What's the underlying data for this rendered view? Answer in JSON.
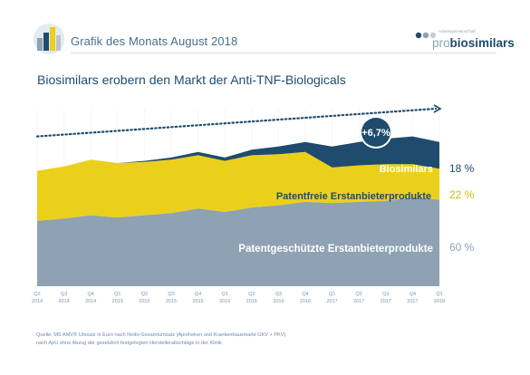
{
  "header": {
    "title": "Grafik des Monats August 2018",
    "logo_small": "Arbeitsgemeinschaft",
    "logo_pro": "pro",
    "logo_main": "biosimilars"
  },
  "chart_data": {
    "type": "area",
    "title": "Biosimilars erobern den Markt der Anti-TNF-Biologicals",
    "stacked": true,
    "categories": [
      "Q2 2014",
      "Q3 2014",
      "Q4 2014",
      "Q1 2015",
      "Q2 2015",
      "Q3 2015",
      "Q4 2015",
      "Q1 2016",
      "Q2 2016",
      "Q3 2016",
      "Q4 2016",
      "Q1 2017",
      "Q2 2017",
      "Q3 2017",
      "Q4 2017",
      "Q1 2018"
    ],
    "tick_labels": [
      [
        "Q2",
        "2014"
      ],
      [
        "Q3",
        "2014"
      ],
      [
        "Q4",
        "2014"
      ],
      [
        "Q1",
        "2015"
      ],
      [
        "Q2",
        "2015"
      ],
      [
        "Q3",
        "2015"
      ],
      [
        "Q4",
        "2015"
      ],
      [
        "Q1",
        "2016"
      ],
      [
        "Q2",
        "2016"
      ],
      [
        "Q3",
        "2016"
      ],
      [
        "Q4",
        "2016"
      ],
      [
        "Q1",
        "2017"
      ],
      [
        "Q2",
        "2017"
      ],
      [
        "Q3",
        "2017"
      ],
      [
        "Q4",
        "2017"
      ],
      [
        "Q1",
        "2018"
      ]
    ],
    "series": [
      {
        "name": "Patentgeschützte Erstanbieterprodukte",
        "share": "60 %",
        "color": "#8ea2b3",
        "label_color": "#ffffff",
        "share_color": "#8ea2b3",
        "values": [
          59,
          61,
          64,
          62,
          64,
          66,
          70,
          67,
          71,
          73,
          76,
          75,
          76,
          77,
          80,
          78
        ]
      },
      {
        "name": "Patentfreie Erstanbieterprodukte",
        "share": "22 %",
        "color": "#ead01a",
        "label_color": "#1f4c6e",
        "share_color": "#d4ba00",
        "values": [
          45,
          47,
          50,
          49,
          48,
          48,
          48,
          46,
          47,
          46,
          45,
          32,
          33,
          33,
          30,
          28
        ]
      },
      {
        "name": "Biosimilars",
        "share": "18 %",
        "color": "#1f4c6e",
        "label_color": "#ffffff",
        "share_color": "#1f4c6e",
        "values": [
          0,
          0,
          0,
          0,
          1,
          2,
          3,
          3,
          5,
          7,
          9,
          19,
          21,
          23,
          25,
          24
        ]
      }
    ],
    "ylim": [
      0,
      160
    ],
    "trend": {
      "label": "+6,7%",
      "start": 135,
      "end": 160
    }
  },
  "footer": {
    "line1": "Quelle: MS AMV® Umsatz in Euro nach Netto-Gesamtumsatz (Apotheken und Krankenhausmarkt GKV + PKV)",
    "line2": "nach ApU ohne Abzug der gesetzlich festgelegten Herstellerabschläge in der Klinik"
  }
}
